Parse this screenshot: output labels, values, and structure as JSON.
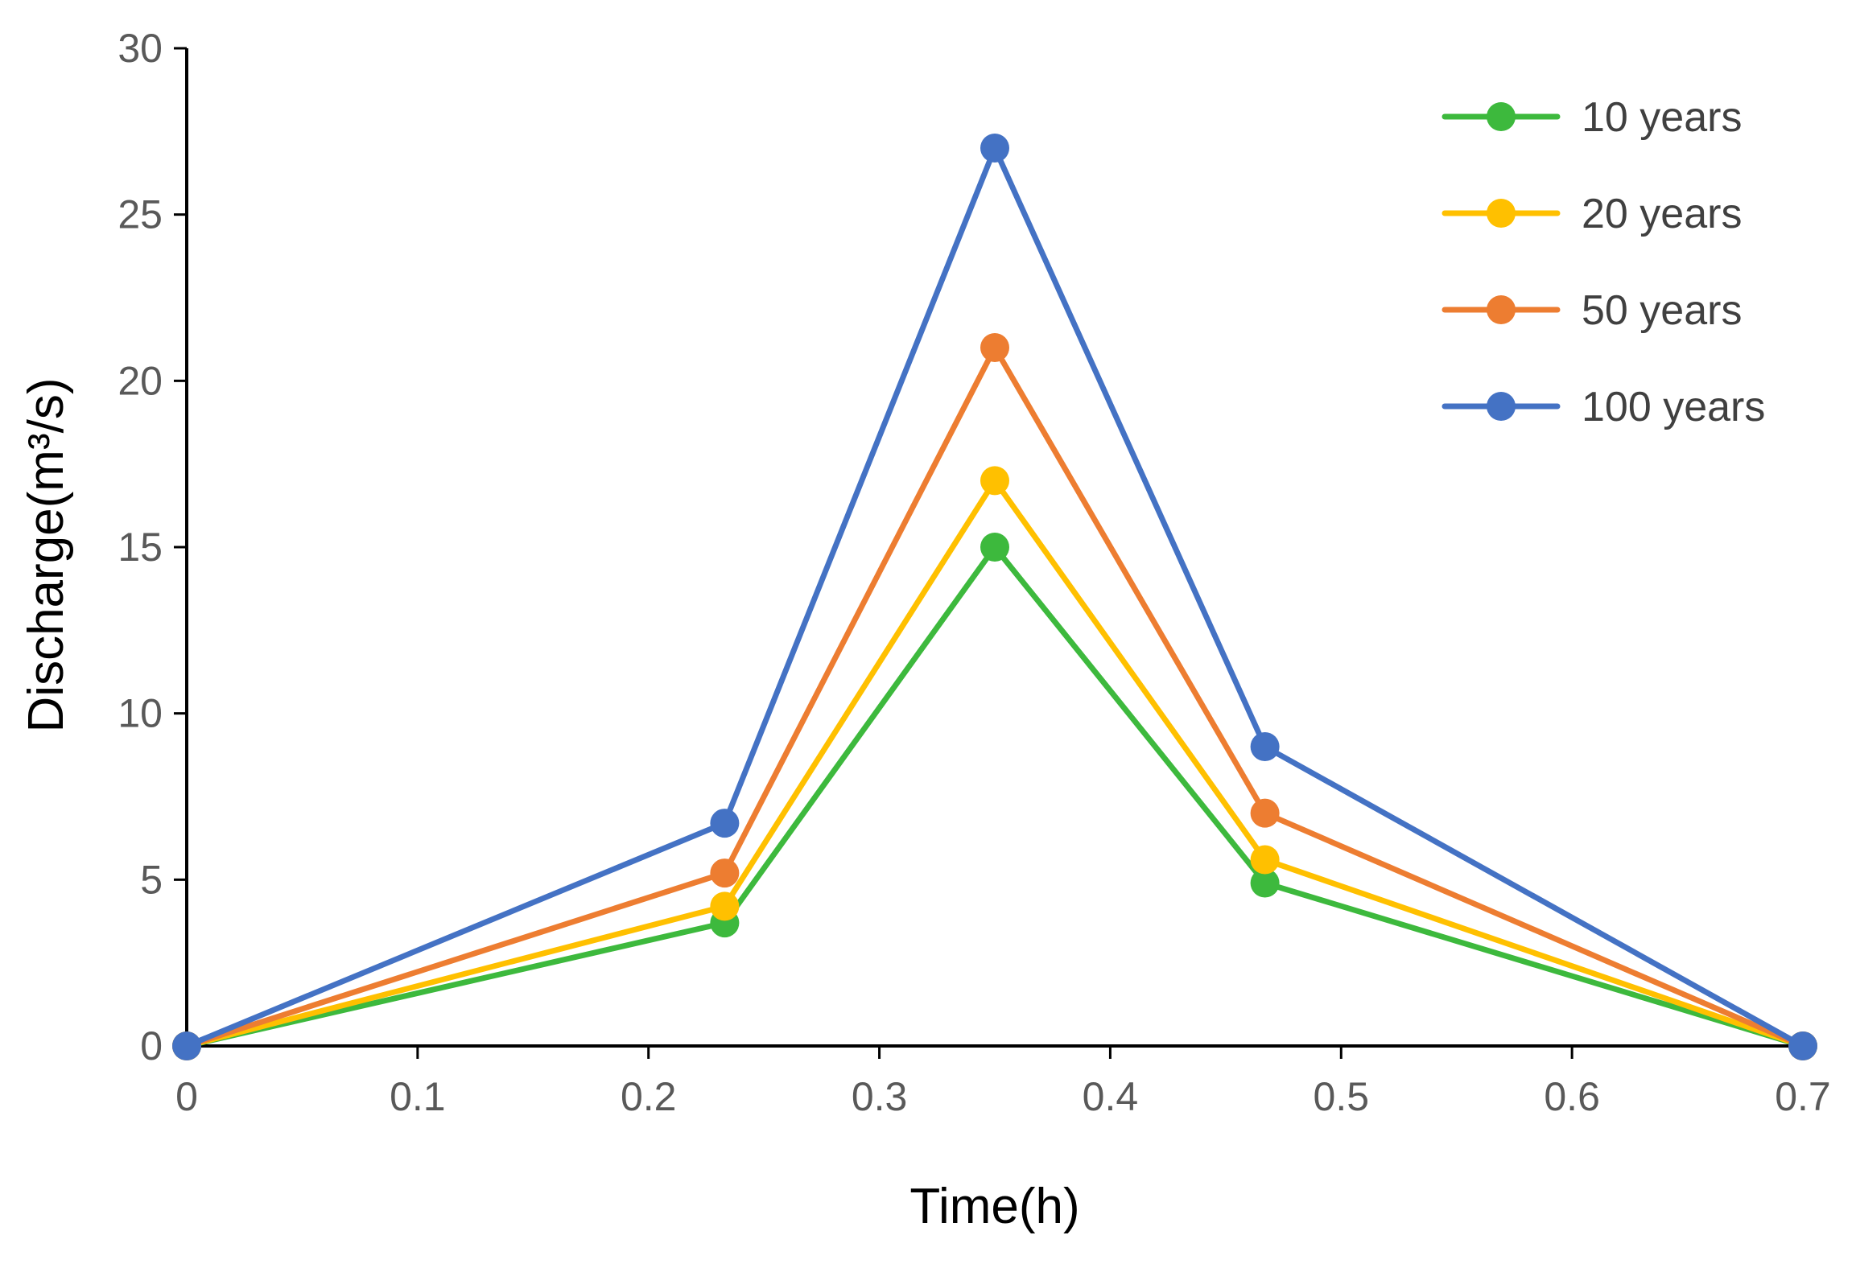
{
  "chart_data": {
    "type": "line",
    "title": "",
    "xlabel": "Time(h)",
    "ylabel": "Discharge(m³/s)",
    "xlim": [
      0,
      0.7
    ],
    "ylim": [
      0,
      30
    ],
    "xticks": [
      0,
      0.1,
      0.2,
      0.3,
      0.4,
      0.5,
      0.6,
      0.7
    ],
    "xtick_labels": [
      "0",
      "0.1",
      "0.2",
      "0.3",
      "0.4",
      "0.5",
      "0.6",
      "0.7"
    ],
    "yticks": [
      0,
      5,
      10,
      15,
      20,
      25,
      30
    ],
    "ytick_labels": [
      "0",
      "5",
      "10",
      "15",
      "20",
      "25",
      "30"
    ],
    "grid": false,
    "legend_position": "top-right",
    "x": [
      0,
      0.233,
      0.35,
      0.467,
      0.7
    ],
    "series": [
      {
        "name": "10 years",
        "color": "#3db93d",
        "values": [
          0,
          3.7,
          15,
          4.9,
          0
        ]
      },
      {
        "name": "20 years",
        "color": "#ffc000",
        "values": [
          0,
          4.2,
          17,
          5.6,
          0
        ]
      },
      {
        "name": "50 years",
        "color": "#ed7d31",
        "values": [
          0,
          5.2,
          21,
          7,
          0
        ]
      },
      {
        "name": "100 years",
        "color": "#4472c4",
        "values": [
          0,
          6.7,
          27,
          9,
          0
        ]
      }
    ]
  }
}
